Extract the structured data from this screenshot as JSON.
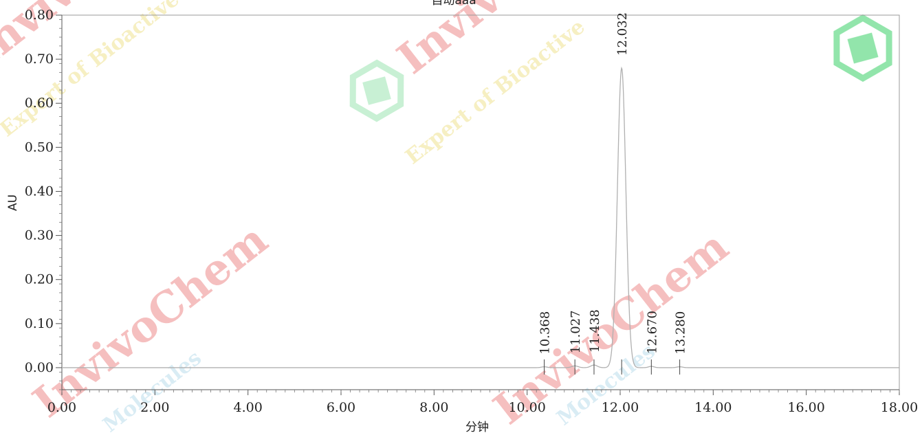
{
  "chart_data": {
    "type": "line",
    "title": "自动aaa",
    "xlabel": "分钟",
    "ylabel": "AU",
    "xlim": [
      0,
      18
    ],
    "ylim": [
      -0.05,
      0.8
    ],
    "x_ticks": [
      {
        "value": 0,
        "label": "0.00"
      },
      {
        "value": 2,
        "label": "2.00"
      },
      {
        "value": 4,
        "label": "4.00"
      },
      {
        "value": 6,
        "label": "6.00"
      },
      {
        "value": 8,
        "label": "8.00"
      },
      {
        "value": 10,
        "label": "10.00"
      },
      {
        "value": 12,
        "label": "12.00"
      },
      {
        "value": 14,
        "label": "14.00"
      },
      {
        "value": 16,
        "label": "16.00"
      },
      {
        "value": 18,
        "label": "18.00"
      }
    ],
    "y_ticks": [
      {
        "value": 0.0,
        "label": "0.00"
      },
      {
        "value": 0.1,
        "label": "0.10"
      },
      {
        "value": 0.2,
        "label": "0.20"
      },
      {
        "value": 0.3,
        "label": "0.30"
      },
      {
        "value": 0.4,
        "label": "0.40"
      },
      {
        "value": 0.5,
        "label": "0.50"
      },
      {
        "value": 0.6,
        "label": "0.60"
      },
      {
        "value": 0.7,
        "label": "0.70"
      },
      {
        "value": 0.8,
        "label": "0.80"
      }
    ],
    "baseline": 0.0,
    "peaks": [
      {
        "rt": 10.368,
        "label": "10.368",
        "height": 0.002,
        "width": 0.06
      },
      {
        "rt": 11.027,
        "label": "11.027",
        "height": 0.004,
        "width": 0.07
      },
      {
        "rt": 11.438,
        "label": "11.438",
        "height": 0.006,
        "width": 0.07
      },
      {
        "rt": 12.032,
        "label": "12.032",
        "height": 0.68,
        "width": 0.09
      },
      {
        "rt": 12.67,
        "label": "12.670",
        "height": 0.003,
        "width": 0.06
      },
      {
        "rt": 13.28,
        "label": "13.280",
        "height": 0.002,
        "width": 0.06
      }
    ],
    "grid": false,
    "line_color": "#b0b0b0"
  },
  "watermarks": [
    {
      "text": "InvivoChem",
      "color": "#e02020"
    },
    {
      "text": "Expert of Bioactive",
      "color": "#d6b400"
    },
    {
      "text": "Molecules",
      "color": "#9fd0e8"
    }
  ],
  "logo_color": "#35d46a"
}
